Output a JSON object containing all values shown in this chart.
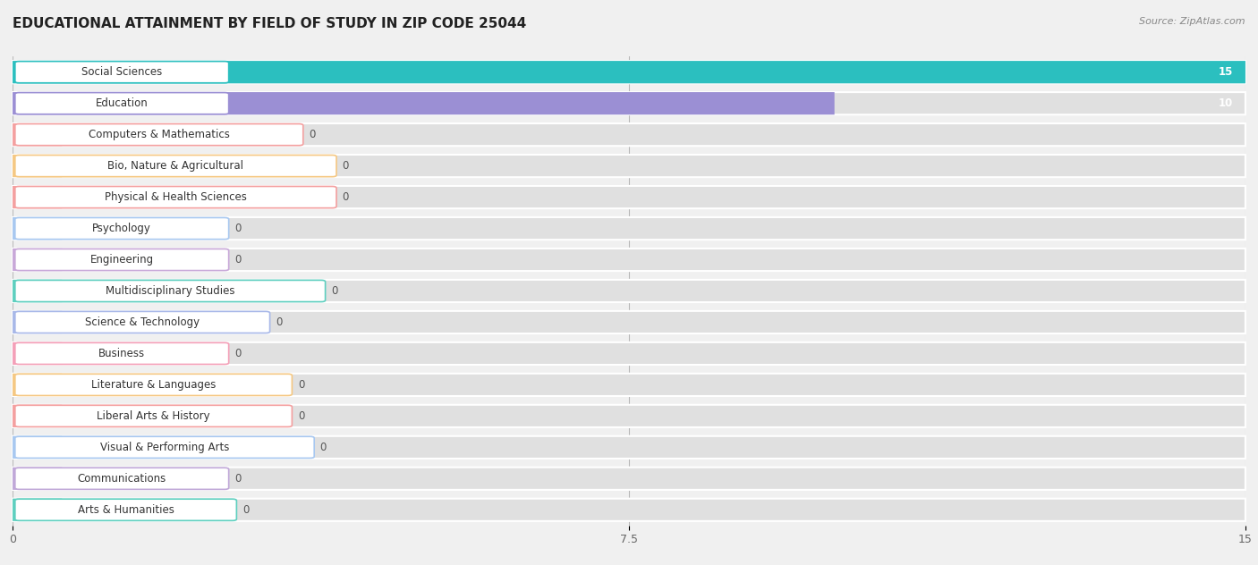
{
  "title": "EDUCATIONAL ATTAINMENT BY FIELD OF STUDY IN ZIP CODE 25044",
  "source": "Source: ZipAtlas.com",
  "categories": [
    "Social Sciences",
    "Education",
    "Computers & Mathematics",
    "Bio, Nature & Agricultural",
    "Physical & Health Sciences",
    "Psychology",
    "Engineering",
    "Multidisciplinary Studies",
    "Science & Technology",
    "Business",
    "Literature & Languages",
    "Liberal Arts & History",
    "Visual & Performing Arts",
    "Communications",
    "Arts & Humanities"
  ],
  "values": [
    15,
    10,
    0,
    0,
    0,
    0,
    0,
    0,
    0,
    0,
    0,
    0,
    0,
    0,
    0
  ],
  "bar_colors": [
    "#2BBFBF",
    "#9B8FD4",
    "#F4A0A0",
    "#F5C883",
    "#F4A0A0",
    "#A8C8F0",
    "#C8A8D8",
    "#5ECFBF",
    "#A8B8E8",
    "#F4A0B8",
    "#F5C883",
    "#F4A0A0",
    "#A8C8F0",
    "#C0A8D8",
    "#5ECFBF"
  ],
  "xlim": [
    0,
    15
  ],
  "xticks": [
    0,
    7.5,
    15
  ],
  "background_color": "#f0f0f0",
  "row_bg_color": "#e8e8e8",
  "bar_height": 0.72,
  "title_fontsize": 11,
  "label_fontsize": 8.5,
  "value_fontsize": 8.5
}
